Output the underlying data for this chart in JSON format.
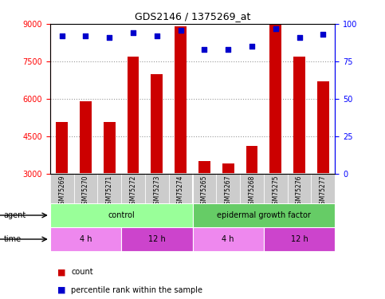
{
  "title": "GDS2146 / 1375269_at",
  "samples": [
    "GSM75269",
    "GSM75270",
    "GSM75271",
    "GSM75272",
    "GSM75273",
    "GSM75274",
    "GSM75265",
    "GSM75267",
    "GSM75268",
    "GSM75275",
    "GSM75276",
    "GSM75277"
  ],
  "bar_values": [
    5050,
    5900,
    5050,
    7700,
    7000,
    8900,
    3500,
    3400,
    4100,
    9100,
    7700,
    6700
  ],
  "percentile_values": [
    92,
    92,
    91,
    94,
    92,
    96,
    83,
    83,
    85,
    97,
    91,
    93
  ],
  "ylim_left": [
    3000,
    9000
  ],
  "ylim_right": [
    0,
    100
  ],
  "yticks_left": [
    3000,
    4500,
    6000,
    7500,
    9000
  ],
  "yticks_right": [
    0,
    25,
    50,
    75,
    100
  ],
  "bar_color": "#cc0000",
  "dot_color": "#0000cc",
  "bar_bottom": 3000,
  "agent_groups": [
    {
      "label": "control",
      "start": 0,
      "end": 6,
      "color": "#99ff99"
    },
    {
      "label": "epidermal growth factor",
      "start": 6,
      "end": 12,
      "color": "#66cc66"
    }
  ],
  "time_groups": [
    {
      "label": "4 h",
      "start": 0,
      "end": 3,
      "color": "#ee88ee"
    },
    {
      "label": "12 h",
      "start": 3,
      "end": 6,
      "color": "#cc44cc"
    },
    {
      "label": "4 h",
      "start": 6,
      "end": 9,
      "color": "#ee88ee"
    },
    {
      "label": "12 h",
      "start": 9,
      "end": 12,
      "color": "#cc44cc"
    }
  ],
  "xlabel_agent": "agent",
  "xlabel_time": "time",
  "legend_count_color": "#cc0000",
  "legend_dot_color": "#0000cc",
  "legend_count_label": "count",
  "legend_dot_label": "percentile rank within the sample",
  "bg_color": "#ffffff",
  "sample_area_color": "#cccccc",
  "grid_color": "#999999"
}
